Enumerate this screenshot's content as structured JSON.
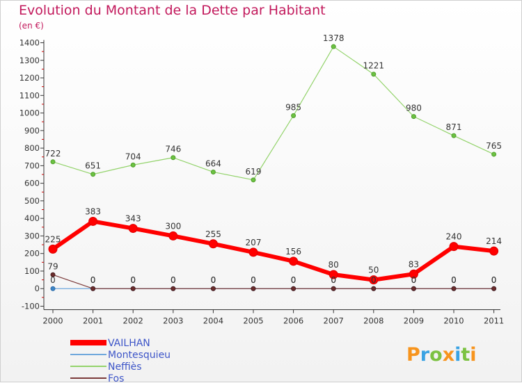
{
  "chart_data": {
    "type": "line",
    "title": "Evolution du Montant de la Dette par Habitant",
    "subtitle": "(en €)",
    "x": [
      "2000",
      "2001",
      "2002",
      "2003",
      "2004",
      "2005",
      "2006",
      "2007",
      "2008",
      "2009",
      "2010",
      "2011"
    ],
    "ylim": [
      -100,
      1400
    ],
    "yticks": [
      -100,
      0,
      100,
      200,
      300,
      400,
      500,
      600,
      700,
      800,
      900,
      1000,
      1100,
      1200,
      1300,
      1400
    ],
    "series": [
      {
        "name": "VAILHAN",
        "color": "#ff0000",
        "values": [
          225,
          383,
          343,
          300,
          255,
          207,
          156,
          80,
          50,
          83,
          240,
          214
        ]
      },
      {
        "name": "Montesquieu",
        "color": "#6fa8dc",
        "values": [
          0,
          0,
          0,
          0,
          0,
          0,
          0,
          0,
          0,
          0,
          0,
          0
        ]
      },
      {
        "name": "Neffiès",
        "color": "#93d36b",
        "values": [
          722,
          651,
          704,
          746,
          664,
          619,
          985,
          1378,
          1221,
          980,
          871,
          765
        ]
      },
      {
        "name": "Fos",
        "color": "#7b3a3a",
        "values": [
          79,
          0,
          0,
          0,
          0,
          0,
          0,
          0,
          0,
          0,
          0,
          0
        ]
      }
    ],
    "legend_position": "bottom-left",
    "grid": false
  },
  "logo": {
    "text": "Proxiti"
  }
}
